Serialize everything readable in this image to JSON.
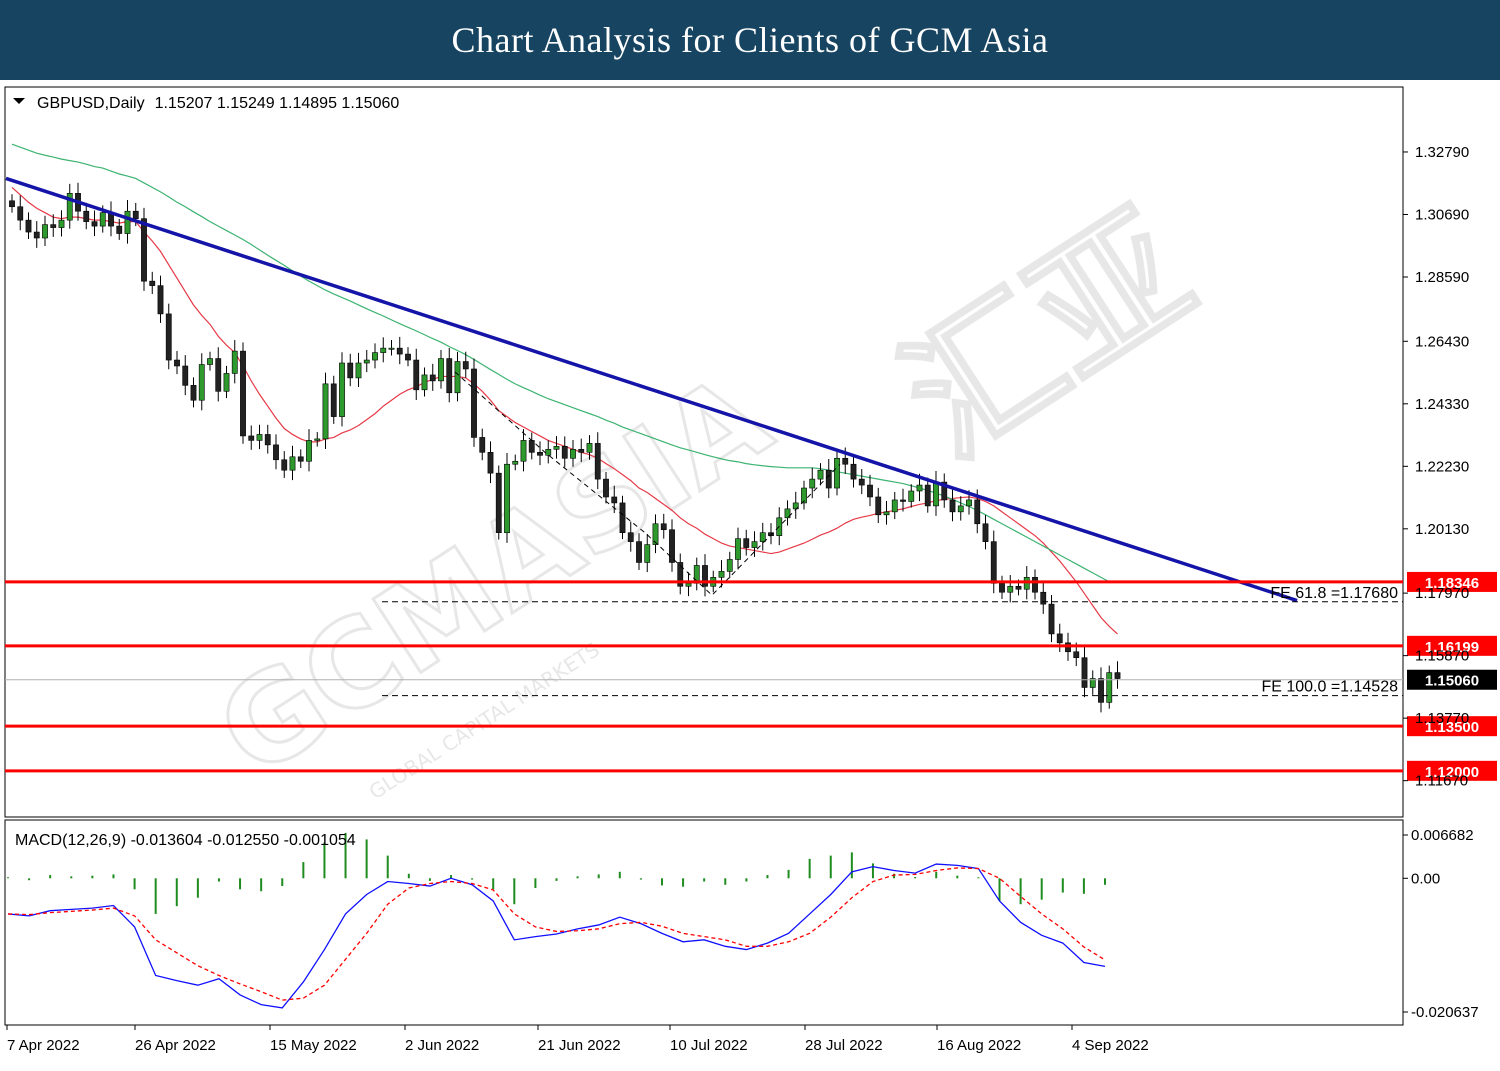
{
  "header": {
    "title": "Chart Analysis for Clients of GCM Asia"
  },
  "watermark": {
    "brand": "GCMASIA",
    "tagline": "GLOBAL CAPITAL MARKETS",
    "chinese": "汇亚"
  },
  "colors": {
    "banner": "#174461",
    "trendline": "#1414a8",
    "level": "#ff0000",
    "ma_fast": "#e63946",
    "ma_slow": "#3cb371",
    "macd_line": "#1010ff",
    "macd_signal": "#ff0000",
    "macd_hist": "#1e8c1e",
    "bull": "#2e9a2e",
    "bear": "#222222"
  },
  "chart_data": [
    {
      "type": "candlestick",
      "title": "GBPUSD,Daily",
      "ohlc_label": "1.15207 1.15249 1.14895 1.15060",
      "ylim": [
        1.1102,
        1.342
      ],
      "y_ticks": [
        "1.32790",
        "1.30690",
        "1.28590",
        "1.26430",
        "1.24330",
        "1.22230",
        "1.20130",
        "1.17970",
        "1.15870",
        "1.13770",
        "1.11670"
      ],
      "x_ticks": [
        "7 Apr 2022",
        "26 Apr 2022",
        "15 May 2022",
        "2 Jun 2022",
        "21 Jun 2022",
        "10 Jul 2022",
        "28 Jul 2022",
        "16 Aug 2022",
        "4 Sep 2022"
      ],
      "close": [
        1.3095,
        1.305,
        1.301,
        1.299,
        1.3035,
        1.3025,
        1.305,
        1.314,
        1.308,
        1.3045,
        1.303,
        1.3075,
        1.303,
        1.3005,
        1.308,
        1.3055,
        1.2845,
        1.283,
        1.2735,
        1.258,
        1.256,
        1.2495,
        1.2445,
        1.2565,
        1.2585,
        1.2475,
        1.2535,
        1.261,
        1.2325,
        1.231,
        1.233,
        1.2295,
        1.2245,
        1.221,
        1.2255,
        1.224,
        1.231,
        1.2315,
        1.25,
        1.239,
        1.257,
        1.252,
        1.257,
        1.258,
        1.2605,
        1.262,
        1.262,
        1.26,
        1.258,
        1.248,
        1.253,
        1.251,
        1.2585,
        1.247,
        1.2575,
        1.255,
        1.232,
        1.227,
        1.22,
        1.2,
        1.223,
        1.224,
        1.231,
        1.227,
        1.226,
        1.228,
        1.229,
        1.225,
        1.228,
        1.227,
        1.23,
        1.218,
        1.212,
        1.21,
        1.2,
        1.197,
        1.19,
        1.196,
        1.203,
        1.201,
        1.19,
        1.182,
        1.183,
        1.189,
        1.182,
        1.185,
        1.187,
        1.191,
        1.198,
        1.195,
        1.197,
        1.2,
        1.199,
        1.205,
        1.208,
        1.21,
        1.215,
        1.218,
        1.221,
        1.215,
        1.225,
        1.223,
        1.218,
        1.216,
        1.212,
        1.206,
        1.207,
        1.211,
        1.2105,
        1.214,
        1.216,
        1.209,
        1.217,
        1.211,
        1.207,
        1.209,
        1.211,
        1.203,
        1.197,
        1.183,
        1.18,
        1.182,
        1.181,
        1.185,
        1.18,
        1.176,
        1.166,
        1.163,
        1.16,
        1.158,
        1.148,
        1.151,
        1.143,
        1.153,
        1.151
      ],
      "series": [
        {
          "name": "",
          "type": "moving_average",
          "values": [
            1.316,
            1.3135,
            1.311,
            1.309,
            1.3075,
            1.306,
            1.3055,
            1.306,
            1.306,
            1.3055,
            1.305,
            1.305,
            1.3045,
            1.304,
            1.3045,
            1.3045,
            1.301,
            1.298,
            1.2945,
            1.29,
            1.2855,
            1.281,
            1.2765,
            1.273,
            1.27,
            1.266,
            1.263,
            1.2605,
            1.256,
            1.251,
            1.2465,
            1.2425,
            1.2385,
            1.235,
            1.233,
            1.2315,
            1.2305,
            1.2305,
            1.2315,
            1.232,
            1.2335,
            1.2345,
            1.236,
            1.238,
            1.24,
            1.2425,
            1.2445,
            1.2465,
            1.248,
            1.249,
            1.2505,
            1.2515,
            1.2525,
            1.2525,
            1.2525,
            1.252,
            1.25,
            1.2475,
            1.2445,
            1.241,
            1.239,
            1.237,
            1.2355,
            1.234,
            1.2325,
            1.231,
            1.23,
            1.229,
            1.228,
            1.227,
            1.2262,
            1.225,
            1.2232,
            1.2215,
            1.2195,
            1.2175,
            1.215,
            1.2135,
            1.2115,
            1.2095,
            1.2075,
            1.205,
            1.203,
            1.2015,
            1.1995,
            1.198,
            1.1965,
            1.1955,
            1.195,
            1.1945,
            1.194,
            1.1935,
            1.193,
            1.1935,
            1.1945,
            1.1955,
            1.1965,
            1.1978,
            1.1992,
            1.2002,
            1.2015,
            1.2032,
            1.2045,
            1.2052,
            1.2058,
            1.2065,
            1.207,
            1.2075,
            1.208,
            1.2088,
            1.2095,
            1.21,
            1.2108,
            1.2112,
            1.2115,
            1.2118,
            1.212,
            1.2115,
            1.2105,
            1.209,
            1.207,
            1.205,
            1.203,
            1.201,
            1.199,
            1.1965,
            1.1935,
            1.1905,
            1.187,
            1.1835,
            1.1795,
            1.1755,
            1.1715,
            1.1685,
            1.166
          ]
        },
        {
          "name": "",
          "type": "moving_average",
          "values": [
            1.3305,
            1.3295,
            1.3285,
            1.3275,
            1.3268,
            1.3262,
            1.3255,
            1.325,
            1.3245,
            1.3238,
            1.323,
            1.3225,
            1.3215,
            1.3205,
            1.3198,
            1.319,
            1.3175,
            1.316,
            1.3145,
            1.3128,
            1.311,
            1.3095,
            1.3078,
            1.3062,
            1.3045,
            1.303,
            1.3015,
            1.3,
            1.2985,
            1.2968,
            1.295,
            1.2932,
            1.2915,
            1.2898,
            1.288,
            1.2862,
            1.2845,
            1.283,
            1.2815,
            1.2802,
            1.279,
            1.2778,
            1.2765,
            1.2752,
            1.274,
            1.2728,
            1.2715,
            1.2702,
            1.269,
            1.2678,
            1.2665,
            1.2652,
            1.264,
            1.2625,
            1.2612,
            1.2598,
            1.2582,
            1.2565,
            1.2548,
            1.2532,
            1.2515,
            1.25,
            1.2487,
            1.2475,
            1.2462,
            1.245,
            1.244,
            1.243,
            1.242,
            1.241,
            1.24,
            1.239,
            1.2378,
            1.2368,
            1.2355,
            1.2345,
            1.2335,
            1.2325,
            1.2315,
            1.2305,
            1.2295,
            1.2285,
            1.2278,
            1.227,
            1.2262,
            1.2255,
            1.2248,
            1.2242,
            1.2238,
            1.2232,
            1.2228,
            1.2225,
            1.2222,
            1.222,
            1.2218,
            1.2218,
            1.2218,
            1.2218,
            1.2215,
            1.221,
            1.2205,
            1.22,
            1.2195,
            1.219,
            1.2185,
            1.218,
            1.2175,
            1.217,
            1.2165,
            1.2158,
            1.215,
            1.2142,
            1.2133,
            1.2123,
            1.2112,
            1.21,
            1.2088,
            1.2075,
            1.206,
            1.2045,
            1.203,
            1.2015,
            1.2,
            1.1985,
            1.197,
            1.1955,
            1.194,
            1.1925,
            1.191,
            1.1895,
            1.188,
            1.1865,
            1.185,
            1.1835,
            1.182
          ]
        }
      ],
      "trendline": {
        "from": [
          "7 Apr 2022",
          1.319
        ],
        "to": [
          "after 4 Sep 2022",
          1.1772
        ]
      },
      "levels": [
        {
          "label": "1.18346",
          "value": 1.18346
        },
        {
          "label": "1.16199",
          "value": 1.16199
        },
        {
          "label": "1.13500",
          "value": 1.135
        },
        {
          "label": "1.12000",
          "value": 1.12
        }
      ],
      "current_price": {
        "label": "1.15060",
        "value": 1.1506
      },
      "fibonacci": [
        {
          "label": "FE 61.8 =1.17680",
          "value": 1.1768
        },
        {
          "label": "FE 100.0 =1.14528",
          "value": 1.14528
        }
      ]
    },
    {
      "type": "macd",
      "title": "MACD(12,26,9) -0.013604 -0.012550 -0.001054",
      "ylim": [
        -0.020637,
        0.006682
      ],
      "y_ticks": [
        "0.006682",
        "0.00",
        "-0.020637"
      ],
      "series": [
        {
          "name": "",
          "type": "line",
          "values": [
            -0.0055,
            -0.0058,
            -0.005,
            -0.0048,
            -0.0046,
            -0.0042,
            -0.0075,
            -0.015,
            -0.0158,
            -0.0165,
            -0.0155,
            -0.018,
            -0.0195,
            -0.02,
            -0.016,
            -0.011,
            -0.0055,
            -0.0025,
            -0.0005,
            -0.0008,
            -0.0012,
            0.0,
            -0.001,
            -0.0035,
            -0.0095,
            -0.009,
            -0.0086,
            -0.0078,
            -0.0072,
            -0.006,
            -0.007,
            -0.0085,
            -0.0098,
            -0.0095,
            -0.0105,
            -0.011,
            -0.01,
            -0.0085,
            -0.0055,
            -0.0025,
            0.001,
            0.0018,
            0.0012,
            0.0008,
            0.0022,
            0.002,
            0.0015,
            -0.0035,
            -0.0068,
            -0.0088,
            -0.01,
            -0.013,
            -0.0136
          ]
        },
        {
          "name": "",
          "type": "signal",
          "values": [
            -0.0055,
            -0.0056,
            -0.0053,
            -0.0051,
            -0.0049,
            -0.0046,
            -0.0058,
            -0.0095,
            -0.0115,
            -0.0135,
            -0.015,
            -0.0163,
            -0.0175,
            -0.0188,
            -0.0185,
            -0.0165,
            -0.0125,
            -0.0085,
            -0.004,
            -0.0015,
            -0.0008,
            -0.0005,
            -0.0008,
            -0.0018,
            -0.0055,
            -0.0075,
            -0.0082,
            -0.0081,
            -0.0078,
            -0.007,
            -0.0068,
            -0.0074,
            -0.0085,
            -0.009,
            -0.0095,
            -0.0105,
            -0.0105,
            -0.0098,
            -0.0085,
            -0.006,
            -0.003,
            -0.0005,
            0.0005,
            0.0006,
            0.0012,
            0.0016,
            0.0015,
            0.0,
            -0.0028,
            -0.0055,
            -0.0078,
            -0.0106,
            -0.0126
          ]
        },
        {
          "name": "",
          "type": "histogram",
          "values": [
            0.0001,
            -0.0003,
            0.0005,
            0.0003,
            0.0004,
            0.0006,
            -0.0017,
            -0.0055,
            -0.0043,
            -0.003,
            -0.0005,
            -0.0017,
            -0.002,
            -0.0012,
            0.0025,
            0.0055,
            0.007,
            0.006,
            0.0035,
            0.0007,
            -0.0004,
            0.0005,
            -0.0002,
            -0.0017,
            -0.004,
            -0.0015,
            -0.0004,
            0.0003,
            0.0006,
            0.001,
            -0.0002,
            -0.0011,
            -0.0013,
            -0.0005,
            -0.001,
            -0.0005,
            0.0005,
            0.0013,
            0.003,
            0.0035,
            0.004,
            0.0023,
            0.0007,
            0.0002,
            0.001,
            0.0004,
            0.0,
            -0.0035,
            -0.004,
            -0.0033,
            -0.0022,
            -0.0024,
            -0.001
          ]
        }
      ]
    }
  ]
}
